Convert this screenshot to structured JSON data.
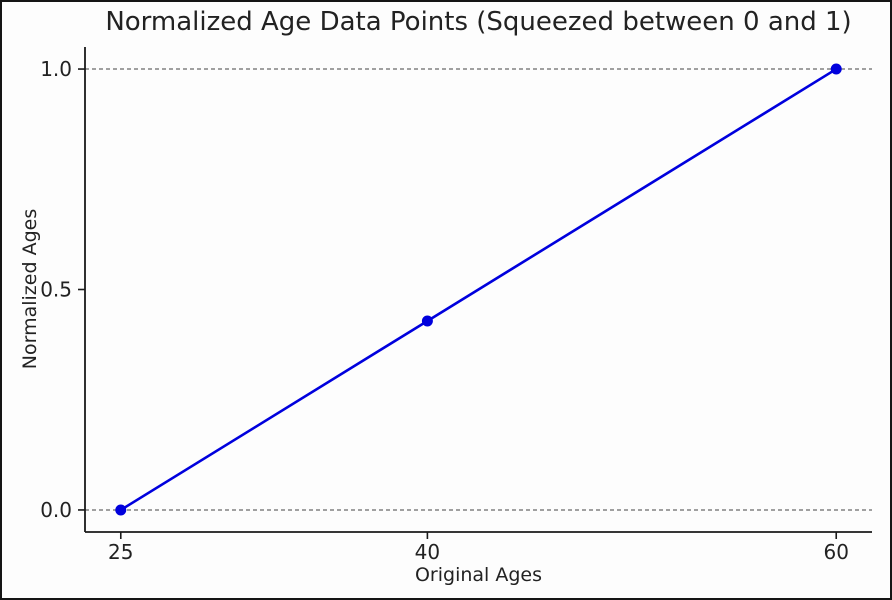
{
  "chart_data": {
    "type": "line",
    "title": "Normalized Age Data Points (Squeezed between 0 and 1)",
    "xlabel": "Original Ages",
    "ylabel": "Normalized Ages",
    "x": [
      25,
      40,
      60
    ],
    "y": [
      0.0,
      0.4286,
      1.0
    ],
    "xticks": [
      25,
      40,
      60
    ],
    "xtick_labels": [
      "25",
      "40",
      "60"
    ],
    "yticks": [
      0.0,
      0.5,
      1.0
    ],
    "ytick_labels": [
      "0.0",
      "0.5",
      "1.0"
    ],
    "xlim": [
      23.25,
      61.75
    ],
    "ylim": [
      -0.05,
      1.05
    ],
    "line_color": "#0000dd",
    "marker": "o",
    "marker_color": "#0000dd",
    "spine_color": "#1a1a1a",
    "reference_lines": {
      "type": "horizontal-dashed",
      "at": [
        0.0,
        1.0
      ],
      "color": "#444444"
    },
    "grid": "off",
    "legend": "none"
  }
}
